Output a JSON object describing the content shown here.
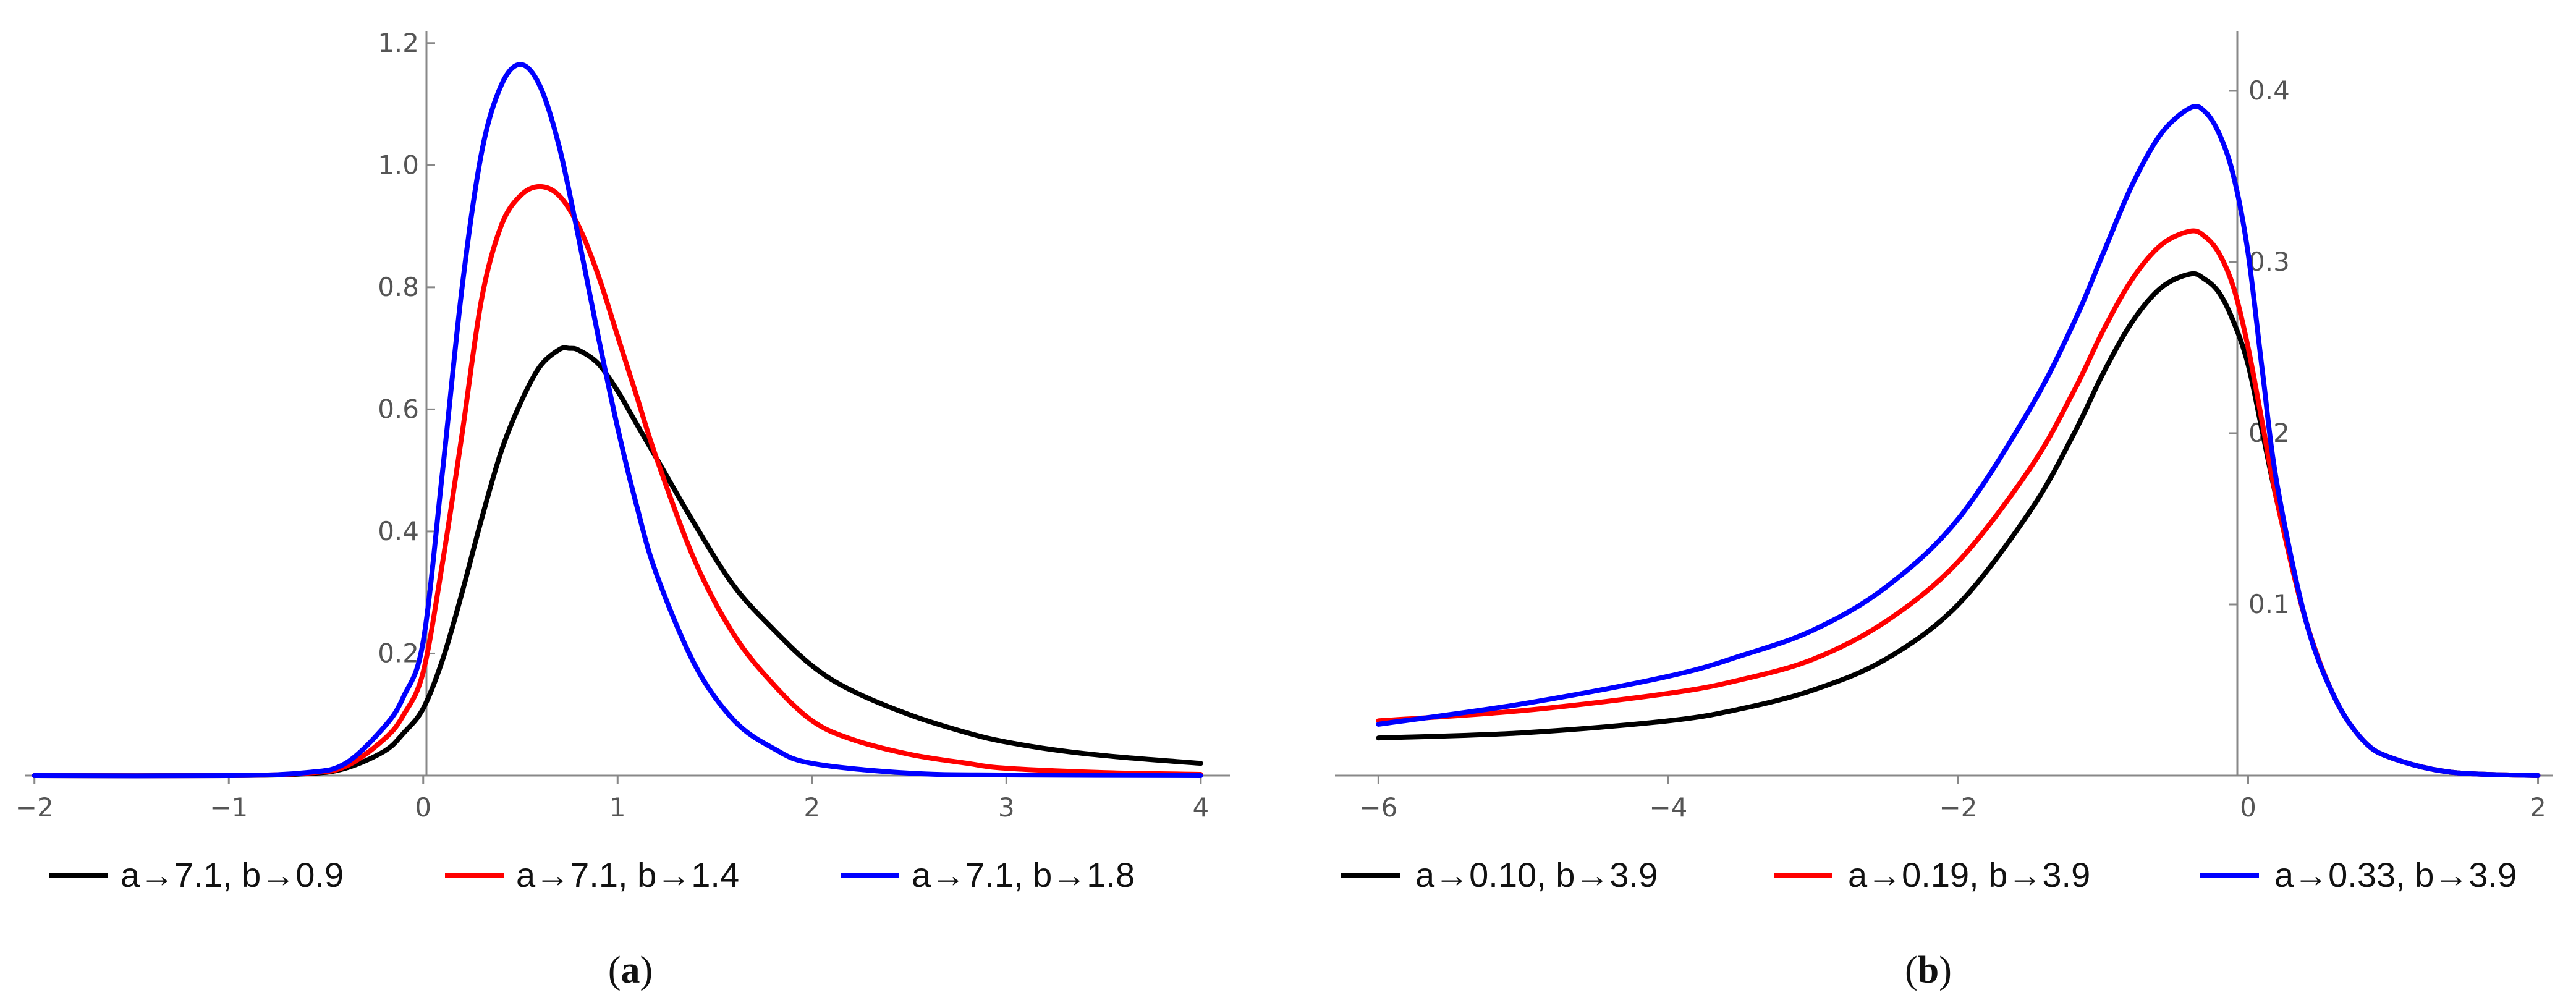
{
  "chart_data": [
    {
      "type": "line",
      "panel_label": "a",
      "title": "",
      "xlabel": "",
      "ylabel": "",
      "xlim": [
        -2.05,
        4.15
      ],
      "ylim": [
        0,
        1.22
      ],
      "x_ticks": [
        -2,
        -1,
        0,
        1,
        2,
        3,
        4
      ],
      "x_tick_labels": [
        "-2",
        "-1",
        "0",
        "1",
        "2",
        "3",
        "4"
      ],
      "y_ticks": [
        0.2,
        0.4,
        0.6,
        0.8,
        1.0,
        1.2
      ],
      "y_tick_labels": [
        "0.2",
        "0.4",
        "0.6",
        "0.8",
        "1.0",
        "1.2"
      ],
      "series": [
        {
          "name": "a→7.1, b→0.9",
          "color": "#000000",
          "x": [
            -2,
            -1,
            -0.6,
            -0.4,
            -0.2,
            -0.1,
            0,
            0.1,
            0.2,
            0.3,
            0.4,
            0.5,
            0.6,
            0.7,
            0.75,
            0.8,
            0.9,
            1.0,
            1.1,
            1.2,
            1.4,
            1.6,
            1.8,
            2.0,
            2.2,
            2.5,
            2.8,
            3.0,
            3.3,
            3.6,
            4.0
          ],
          "y": [
            0,
            0.0,
            0.003,
            0.012,
            0.04,
            0.07,
            0.11,
            0.19,
            0.3,
            0.42,
            0.53,
            0.61,
            0.67,
            0.698,
            0.7,
            0.697,
            0.675,
            0.63,
            0.575,
            0.52,
            0.41,
            0.31,
            0.24,
            0.18,
            0.14,
            0.1,
            0.07,
            0.055,
            0.04,
            0.03,
            0.02
          ]
        },
        {
          "name": "a→7.1, b→1.4",
          "color": "#ff0000",
          "x": [
            -2,
            -1,
            -0.6,
            -0.4,
            -0.2,
            -0.1,
            0,
            0.1,
            0.2,
            0.3,
            0.4,
            0.5,
            0.6,
            0.7,
            0.8,
            0.9,
            1.0,
            1.1,
            1.2,
            1.4,
            1.6,
            1.8,
            2.0,
            2.2,
            2.5,
            2.8,
            3.0,
            3.5,
            4.0
          ],
          "y": [
            0,
            0.0,
            0.004,
            0.015,
            0.06,
            0.1,
            0.17,
            0.35,
            0.56,
            0.78,
            0.9,
            0.95,
            0.965,
            0.95,
            0.9,
            0.82,
            0.72,
            0.62,
            0.52,
            0.35,
            0.23,
            0.15,
            0.09,
            0.06,
            0.035,
            0.02,
            0.012,
            0.005,
            0.002
          ]
        },
        {
          "name": "a→7.1, b→1.8",
          "color": "#0000ff",
          "x": [
            -2,
            -1,
            -0.6,
            -0.4,
            -0.2,
            -0.1,
            0,
            0.1,
            0.2,
            0.3,
            0.4,
            0.5,
            0.6,
            0.7,
            0.8,
            0.9,
            1.0,
            1.1,
            1.2,
            1.4,
            1.6,
            1.8,
            2.0,
            2.5,
            3.0,
            4.0
          ],
          "y": [
            0,
            0.0,
            0.005,
            0.02,
            0.08,
            0.13,
            0.22,
            0.5,
            0.8,
            1.02,
            1.13,
            1.165,
            1.13,
            1.03,
            0.88,
            0.72,
            0.57,
            0.44,
            0.33,
            0.18,
            0.09,
            0.045,
            0.02,
            0.004,
            0.001,
            0
          ]
        }
      ]
    },
    {
      "type": "line",
      "panel_label": "b",
      "title": "",
      "xlabel": "",
      "ylabel": "",
      "xlim": [
        -6.3,
        2.1
      ],
      "ylim": [
        0,
        0.435
      ],
      "x_ticks": [
        -6,
        -4,
        -2,
        0,
        2
      ],
      "x_tick_labels": [
        "-6",
        "-4",
        "-2",
        "0",
        "2"
      ],
      "y_ticks": [
        0.1,
        0.2,
        0.3,
        0.4
      ],
      "y_tick_labels": [
        "0.1",
        "0.2",
        "0.3",
        "0.4"
      ],
      "series": [
        {
          "name": "a→0.10, b→3.9",
          "color": "#000000",
          "x": [
            -6,
            -5,
            -4,
            -3.5,
            -3,
            -2.5,
            -2,
            -1.5,
            -1.2,
            -1,
            -0.8,
            -0.6,
            -0.4,
            -0.3,
            -0.2,
            -0.1,
            0,
            0.1,
            0.2,
            0.4,
            0.6,
            0.8,
            1.0,
            1.4,
            2.0
          ],
          "y": [
            0.022,
            0.025,
            0.032,
            0.039,
            0.05,
            0.068,
            0.1,
            0.155,
            0.2,
            0.235,
            0.265,
            0.285,
            0.293,
            0.29,
            0.282,
            0.265,
            0.24,
            0.2,
            0.16,
            0.09,
            0.045,
            0.02,
            0.01,
            0.002,
            0
          ]
        },
        {
          "name": "a→0.19, b→3.9",
          "color": "#ff0000",
          "x": [
            -6,
            -5,
            -4,
            -3.5,
            -3,
            -2.5,
            -2,
            -1.5,
            -1.2,
            -1,
            -0.8,
            -0.6,
            -0.4,
            -0.3,
            -0.2,
            -0.1,
            0,
            0.1,
            0.2,
            0.4,
            0.6,
            0.8,
            1.0,
            1.4,
            2.0
          ],
          "y": [
            0.032,
            0.038,
            0.048,
            0.056,
            0.068,
            0.09,
            0.125,
            0.18,
            0.225,
            0.26,
            0.29,
            0.31,
            0.318,
            0.315,
            0.305,
            0.285,
            0.25,
            0.205,
            0.16,
            0.09,
            0.045,
            0.02,
            0.01,
            0.002,
            0
          ]
        },
        {
          "name": "a→0.33, b→3.9",
          "color": "#0000ff",
          "x": [
            -6,
            -5,
            -4,
            -3.5,
            -3,
            -2.5,
            -2,
            -1.5,
            -1.2,
            -1,
            -0.8,
            -0.6,
            -0.4,
            -0.3,
            -0.2,
            -0.1,
            0,
            0.1,
            0.2,
            0.4,
            0.6,
            0.8,
            1.0,
            1.4,
            2.0
          ],
          "y": [
            0.03,
            0.042,
            0.058,
            0.07,
            0.085,
            0.11,
            0.15,
            0.215,
            0.265,
            0.305,
            0.345,
            0.375,
            0.39,
            0.388,
            0.375,
            0.35,
            0.305,
            0.235,
            0.17,
            0.09,
            0.045,
            0.02,
            0.01,
            0.002,
            0
          ]
        }
      ]
    }
  ]
}
